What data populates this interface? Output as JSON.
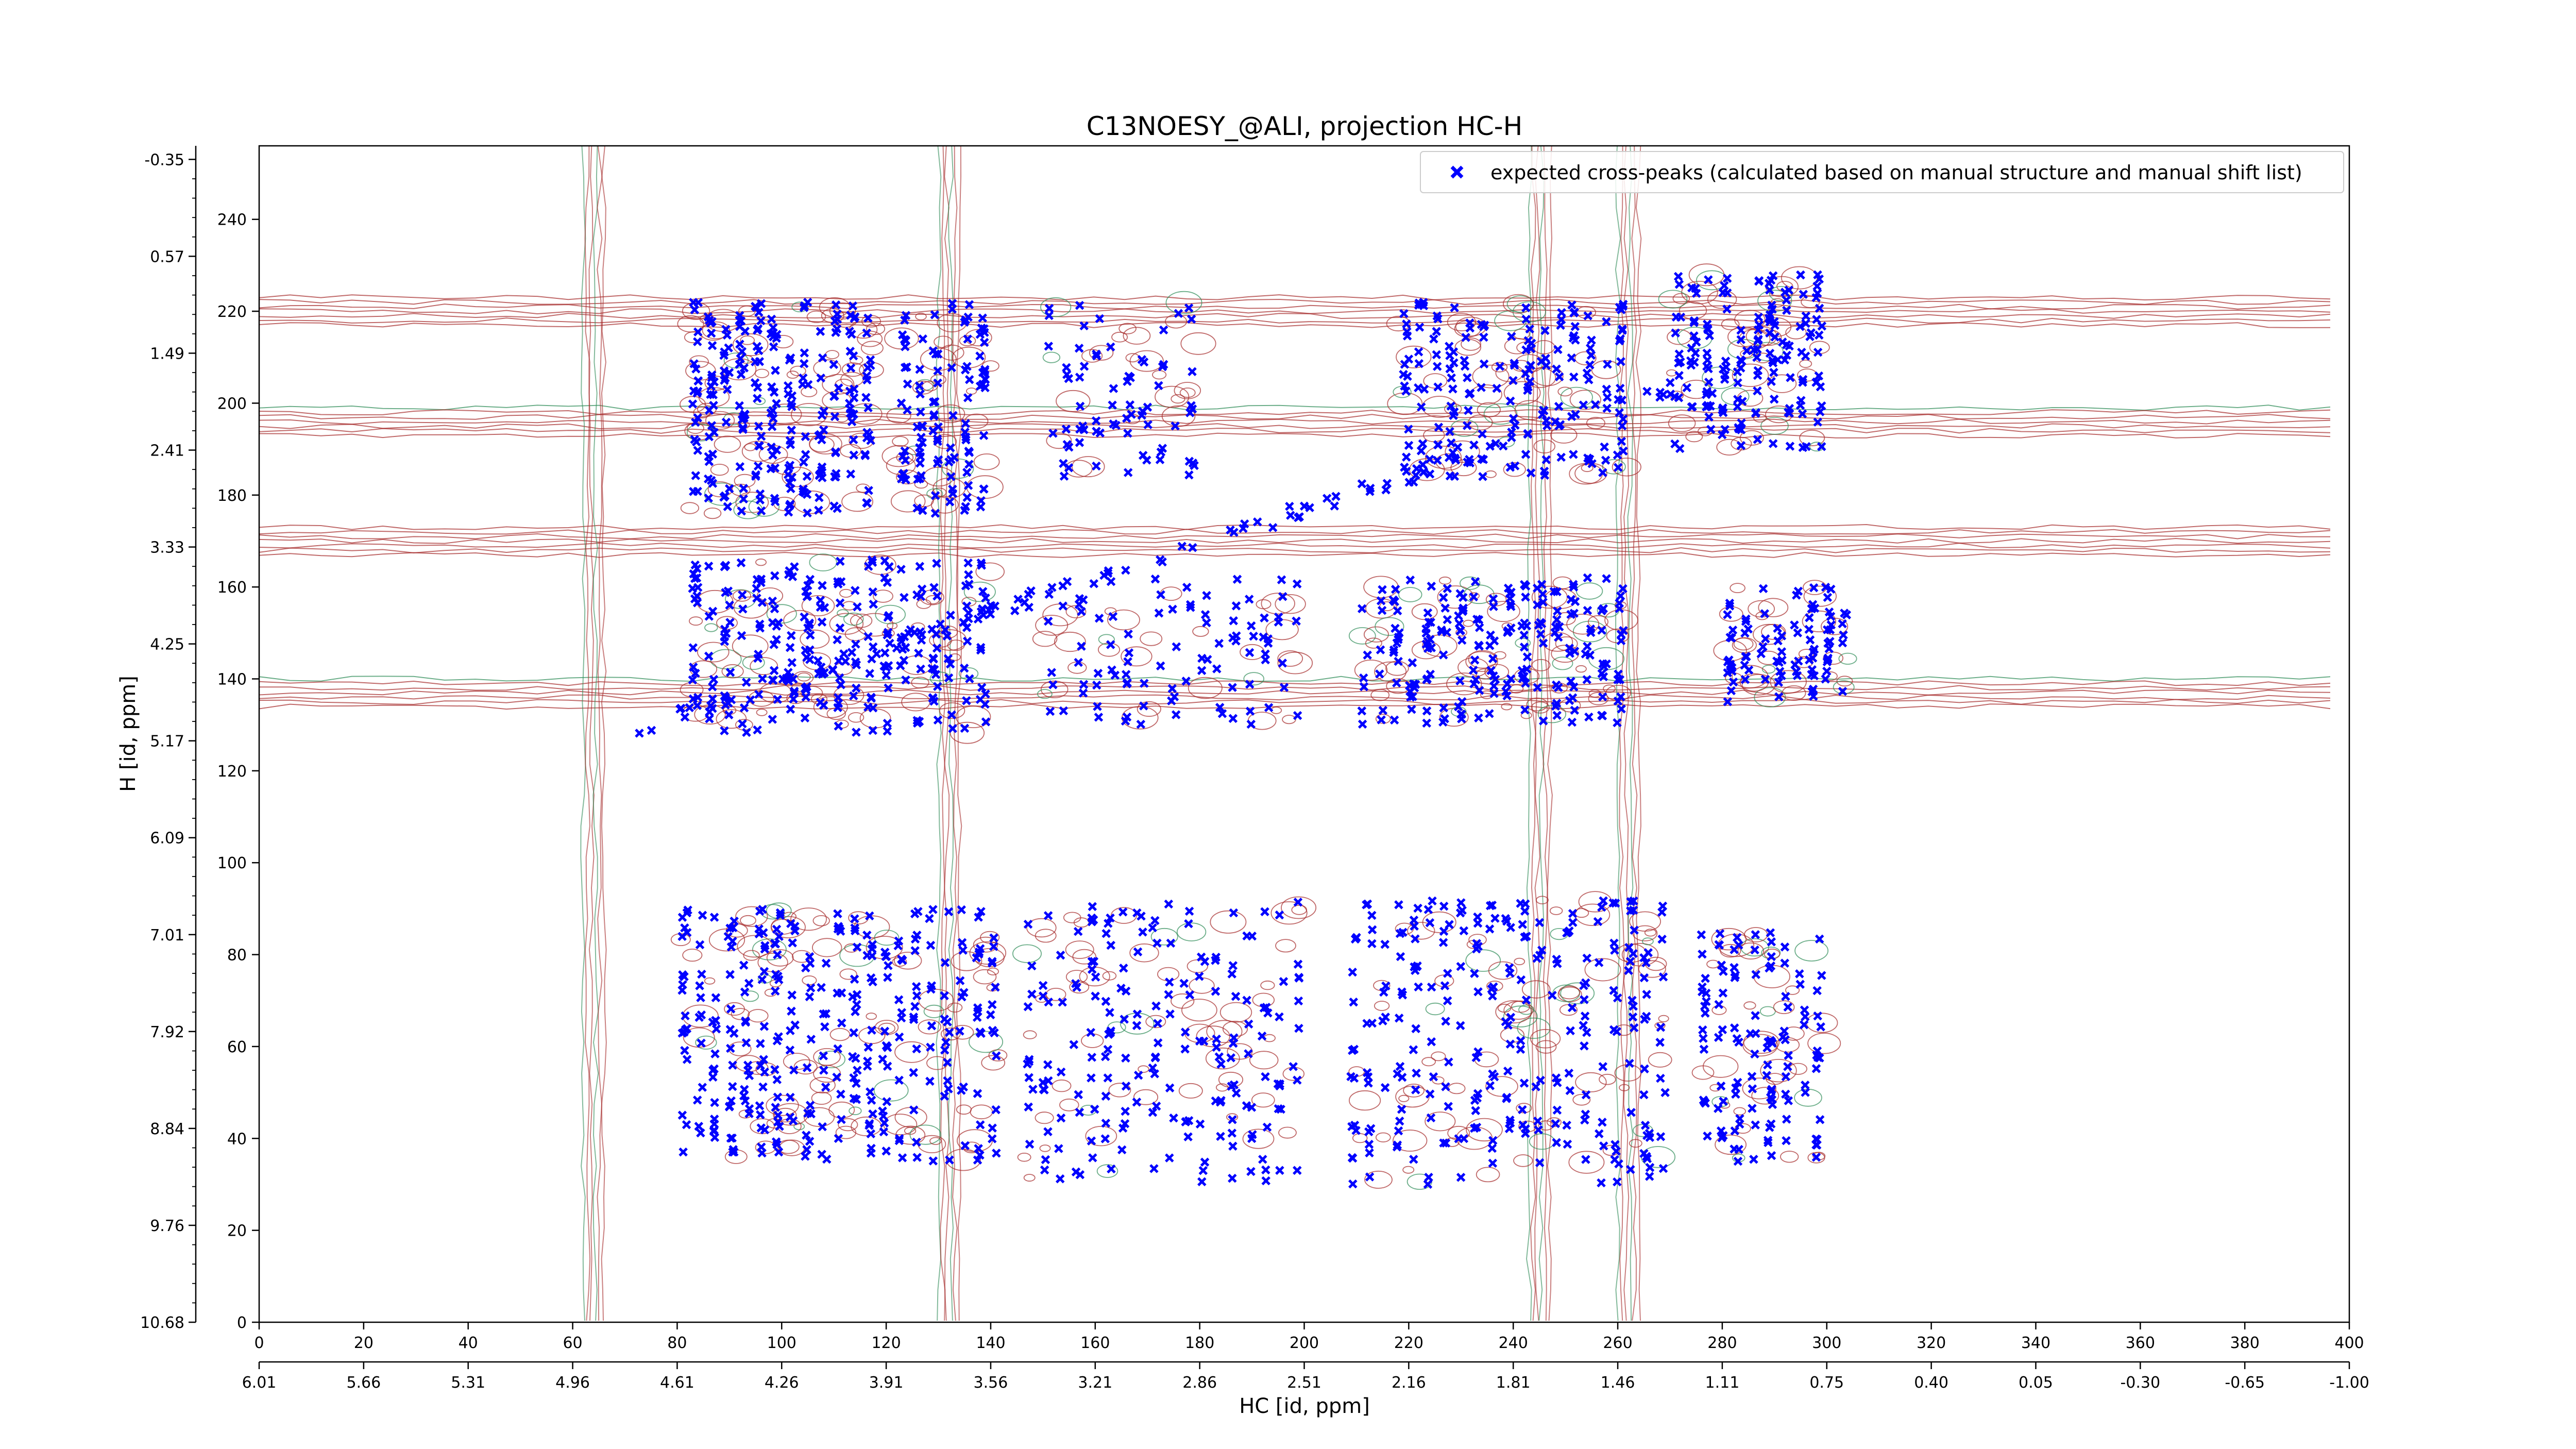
{
  "chart_data": {
    "type": "scatter",
    "title": "C13NOESY_@ALI, projection HC-H",
    "xlabel": "HC [id, ppm]",
    "ylabel": "H [id, ppm]",
    "xlim": [
      0,
      400
    ],
    "ylim": [
      0,
      256
    ],
    "x_ticks_index": [
      "0",
      "20",
      "40",
      "60",
      "80",
      "100",
      "120",
      "140",
      "160",
      "180",
      "200",
      "220",
      "240",
      "260",
      "280",
      "300",
      "320",
      "340",
      "360",
      "380",
      "400"
    ],
    "x_ticks_index_values": [
      0,
      20,
      40,
      60,
      80,
      100,
      120,
      140,
      160,
      180,
      200,
      220,
      240,
      260,
      280,
      300,
      320,
      340,
      360,
      380,
      400
    ],
    "x_ticks_ppm": [
      "6.01",
      "5.66",
      "5.31",
      "4.96",
      "4.61",
      "4.26",
      "3.91",
      "3.56",
      "3.21",
      "2.86",
      "2.51",
      "2.16",
      "1.81",
      "1.46",
      "1.11",
      "0.75",
      "0.40",
      "0.05",
      "-0.30",
      "-0.65",
      "-1.00"
    ],
    "y_ticks_index": [
      "0",
      "20",
      "40",
      "60",
      "80",
      "100",
      "120",
      "140",
      "160",
      "180",
      "200",
      "220",
      "240"
    ],
    "y_ticks_index_values": [
      0,
      20,
      40,
      60,
      80,
      100,
      120,
      140,
      160,
      180,
      200,
      220,
      240
    ],
    "y_ticks_ppm": [
      "10.68",
      "9.76",
      "8.84",
      "7.92",
      "7.01",
      "6.09",
      "5.17",
      "4.25",
      "3.33",
      "2.41",
      "1.49",
      "0.57",
      "-0.35"
    ],
    "y_ticks_ppm_values": [
      0,
      23.5,
      47,
      70.5,
      94,
      117.5,
      141,
      164.5,
      188,
      211.5,
      235,
      258.5,
      282
    ],
    "legend": {
      "label": "expected cross-peaks (calculated based on manual structure and manual shift list)",
      "placement": "top-right"
    },
    "series": [
      {
        "name": "expected cross-peaks (calculated based on manual structure and manual shift list)",
        "color": "#0000ff",
        "marker": "x"
      }
    ],
    "clusters": [
      {
        "x": [
          82,
          118
        ],
        "y": [
          176,
          222
        ],
        "density": 240
      },
      {
        "x": [
          122,
          140
        ],
        "y": [
          176,
          222
        ],
        "density": 110
      },
      {
        "x": [
          150,
          180
        ],
        "y": [
          184,
          222
        ],
        "density": 70
      },
      {
        "x": [
          218,
          262
        ],
        "y": [
          184,
          222
        ],
        "density": 170
      },
      {
        "x": [
          270,
          300
        ],
        "y": [
          190,
          228
        ],
        "density": 150
      },
      {
        "x": [
          82,
          140
        ],
        "y": [
          128,
          166
        ],
        "density": 230
      },
      {
        "x": [
          150,
          200
        ],
        "y": [
          130,
          162
        ],
        "density": 90
      },
      {
        "x": [
          210,
          262
        ],
        "y": [
          130,
          162
        ],
        "density": 210
      },
      {
        "x": [
          280,
          305
        ],
        "y": [
          135,
          160
        ],
        "density": 90
      },
      {
        "x": [
          80,
          142
        ],
        "y": [
          35,
          90
        ],
        "density": 320
      },
      {
        "x": [
          146,
          200
        ],
        "y": [
          30,
          92
        ],
        "density": 190
      },
      {
        "x": [
          208,
          270
        ],
        "y": [
          30,
          92
        ],
        "density": 260
      },
      {
        "x": [
          275,
          300
        ],
        "y": [
          35,
          85
        ],
        "density": 120
      }
    ],
    "diagonal": {
      "from": [
        70,
        128
      ],
      "to": [
        300,
        215
      ]
    },
    "contours": {
      "colors": {
        "positive": "#a52a2a",
        "negative": "#2e8b57"
      },
      "horizontal_bands_y": [
        137,
        170,
        196,
        220
      ],
      "vertical_bands_x": [
        64,
        132,
        245,
        262
      ]
    }
  }
}
